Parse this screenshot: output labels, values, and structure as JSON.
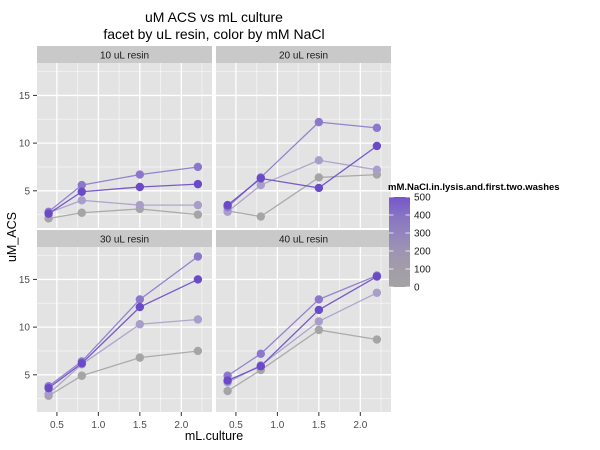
{
  "chart_data": {
    "type": "line",
    "title": "uM ACS vs mL culture",
    "subtitle": "facet by uL resin, color by mM NaCl",
    "xlabel": "mL.culture",
    "ylabel": "uM_ACS",
    "x": [
      0.4,
      0.8,
      1.5,
      2.2
    ],
    "xtick_labels": [
      "0.5",
      "1.0",
      "1.5",
      "2.0"
    ],
    "xtick_values": [
      0.5,
      1.0,
      1.5,
      2.0
    ],
    "ytick_labels": [
      "5",
      "10",
      "15"
    ],
    "ytick_values": [
      5,
      10,
      15
    ],
    "x_minor": [
      0.75,
      1.25,
      1.75,
      2.25
    ],
    "y_minor": [
      2.5,
      7.5,
      12.5,
      17.5
    ],
    "xlim": [
      0.26,
      2.37
    ],
    "ylim": [
      1.1,
      18.4
    ],
    "grid": true,
    "legend_position": "right",
    "series_levels": [
      {
        "nacl": 0,
        "color": "#A5A5A5"
      },
      {
        "nacl": 100,
        "color": "#A89EC9"
      },
      {
        "nacl": 400,
        "color": "#8B77CC"
      },
      {
        "nacl": 500,
        "color": "#6B4AC8"
      }
    ],
    "facets": [
      {
        "label": "10 uL resin",
        "series": [
          {
            "nacl": 0,
            "values": [
              2.1,
              2.7,
              3.1,
              2.5
            ]
          },
          {
            "nacl": 100,
            "values": [
              2.7,
              4.0,
              3.5,
              3.5
            ]
          },
          {
            "nacl": 400,
            "values": [
              2.8,
              5.6,
              6.7,
              7.5
            ]
          },
          {
            "nacl": 500,
            "values": [
              2.6,
              4.9,
              5.4,
              5.7
            ]
          }
        ]
      },
      {
        "label": "20 uL resin",
        "series": [
          {
            "nacl": 0,
            "values": [
              2.9,
              2.3,
              6.4,
              6.7
            ]
          },
          {
            "nacl": 100,
            "values": [
              2.8,
              5.6,
              8.2,
              7.2
            ]
          },
          {
            "nacl": 400,
            "values": [
              3.3,
              6.4,
              12.2,
              11.6
            ]
          },
          {
            "nacl": 500,
            "values": [
              3.5,
              6.3,
              5.3,
              9.7
            ]
          }
        ]
      },
      {
        "label": "30 uL resin",
        "series": [
          {
            "nacl": 0,
            "values": [
              2.8,
              4.9,
              6.8,
              7.5
            ]
          },
          {
            "nacl": 100,
            "values": [
              3.0,
              6.1,
              10.3,
              10.8
            ]
          },
          {
            "nacl": 400,
            "values": [
              3.8,
              6.4,
              12.9,
              17.4
            ]
          },
          {
            "nacl": 500,
            "values": [
              3.6,
              6.2,
              12.1,
              15.0
            ]
          }
        ]
      },
      {
        "label": "40 uL resin",
        "series": [
          {
            "nacl": 0,
            "values": [
              3.3,
              5.5,
              9.7,
              8.7
            ]
          },
          {
            "nacl": 100,
            "values": [
              4.2,
              6.0,
              10.6,
              13.6
            ]
          },
          {
            "nacl": 400,
            "values": [
              4.9,
              7.2,
              12.9,
              15.4
            ]
          },
          {
            "nacl": 500,
            "values": [
              4.4,
              5.9,
              11.8,
              15.3
            ]
          }
        ]
      }
    ],
    "legend": {
      "title": "mM.NaCl.in.lysis.and.first.two.washes",
      "labels": [
        "500",
        "400",
        "300",
        "200",
        "100",
        "0"
      ],
      "values": [
        500,
        400,
        300,
        200,
        100,
        0
      ],
      "range": [
        0,
        500
      ],
      "gradient": [
        {
          "value": 500,
          "color": "#7457C8"
        },
        {
          "value": 400,
          "color": "#8672C4"
        },
        {
          "value": 300,
          "color": "#9384BD"
        },
        {
          "value": 200,
          "color": "#9D94B3"
        },
        {
          "value": 100,
          "color": "#A29DA9"
        },
        {
          "value": 0,
          "color": "#A3A3A3"
        }
      ]
    },
    "colors": {
      "panel_bg": "#E3E3E3",
      "strip_bg": "#C9C9C9",
      "strip_text": "#1A1A1A",
      "grid_major": "#FFFFFF",
      "grid_minor": "rgba(255,255,255,0.5)",
      "tick_text": "#4D4D4D",
      "axis_tick": "#333333",
      "legend_text": "#1A1A1A"
    }
  }
}
